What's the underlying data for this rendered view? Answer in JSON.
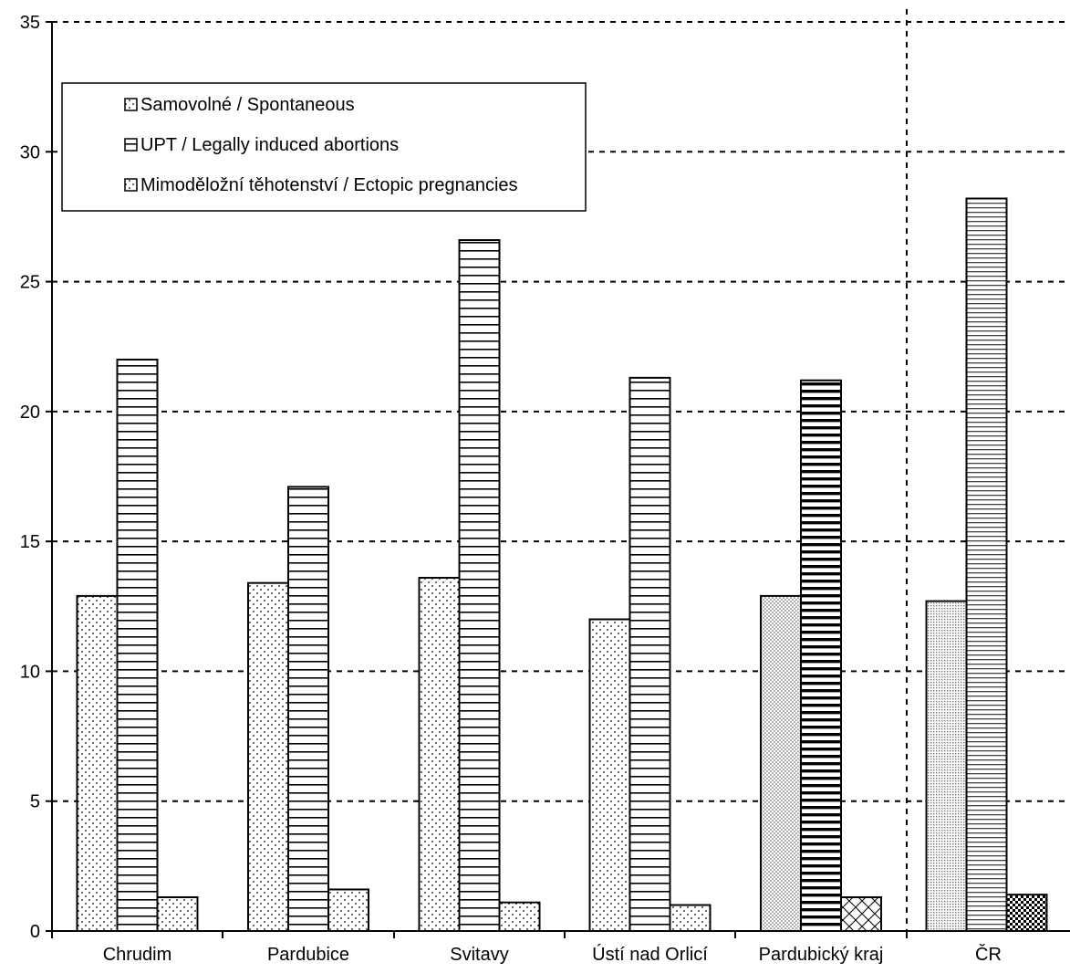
{
  "chart_data": {
    "type": "bar",
    "categories": [
      "Chrudim",
      "Pardubice",
      "Svitavy",
      "Ústí nad Orlicí",
      "Pardubický kraj",
      "ČR"
    ],
    "series": [
      {
        "name": "Samovolné / Spontaneous",
        "values": [
          12.9,
          13.4,
          13.6,
          12.0,
          12.9,
          12.7
        ]
      },
      {
        "name": "UPT / Legally induced abortions",
        "values": [
          22.0,
          17.1,
          26.6,
          21.3,
          21.2,
          28.2
        ]
      },
      {
        "name": "Mimoděložní těhotenství / Ectopic pregnancies",
        "values": [
          1.3,
          1.6,
          1.1,
          1.0,
          1.3,
          1.4
        ]
      }
    ],
    "ylim": [
      0,
      35
    ],
    "yticks": [
      0,
      5,
      10,
      15,
      20,
      25,
      30,
      35
    ],
    "grid": "dashed horizontal",
    "legend_position": "top-left",
    "separator_before_category": "ČR"
  }
}
